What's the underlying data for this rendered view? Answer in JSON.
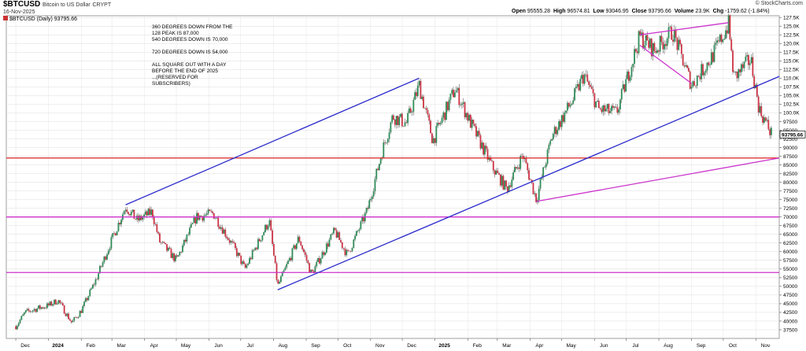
{
  "header": {
    "symbol": "$BTCUSD",
    "name": "Bitcoin to US Dollar",
    "exchange": "CRYPT",
    "date": "16-Nov-2025",
    "legend": "$BTCUSD (Daily) 93795.66",
    "source": "© StockCharts.com",
    "ohlc": {
      "open_label": "Open",
      "open": "95555.28",
      "high_label": "High",
      "high": "96574.81",
      "low_label": "Low",
      "low": "93046.95",
      "close_label": "Close",
      "close": "93795.66",
      "volume_label": "Volume",
      "volume": "23.9K",
      "chg_label": "Chg",
      "chg": "-1759.62 (-1.84%)"
    }
  },
  "annotations": {
    "line1": "360 DEGREES DOWN FROM THE",
    "line2": "128 PEAK IS 87,000",
    "line3": "540 DEGREES DOWN IS 70,000",
    "line4": "720 DEGREES DOWN IS 54,000",
    "line5": "ALL SQUARE OUT WITH A DAY",
    "line6": "BEFORE THE END OF 2025",
    "line7": "...(RESERVED FOR",
    "line8": "SUBSCRIBERS)"
  },
  "chart_data": {
    "type": "candlestick",
    "title": "Bitcoin to US Dollar",
    "x_ticks": [
      "Dec",
      "2024",
      "Feb",
      "Mar",
      "Apr",
      "May",
      "Jun",
      "Jul",
      "Aug",
      "Sep",
      "Oct",
      "Nov",
      "Dec",
      "2025",
      "Feb",
      "Mar",
      "Apr",
      "May",
      "Jun",
      "Jul",
      "Aug",
      "Sep",
      "Oct",
      "Nov"
    ],
    "y_ticks": [
      "127.5K",
      "125.0K",
      "122.5K",
      "120.0K",
      "117.5K",
      "115.0K",
      "112.5K",
      "110.0K",
      "107.5K",
      "105.0K",
      "102.5K",
      "100.0K",
      "97500",
      "95000",
      "92500",
      "90000",
      "87500",
      "85000",
      "82500",
      "80000",
      "77500",
      "75000",
      "72500",
      "70000",
      "67500",
      "65000",
      "62500",
      "60000",
      "57500",
      "55000",
      "52500",
      "50000",
      "47500",
      "45000",
      "42500",
      "40000",
      "37500"
    ],
    "y_range": [
      35000,
      128000
    ],
    "last_price_label": "93795.66",
    "price_path": [
      [
        "2023-12-01",
        38500
      ],
      [
        "2023-12-10",
        42500
      ],
      [
        "2023-12-20",
        43500
      ],
      [
        "2024-01-01",
        44500
      ],
      [
        "2024-01-10",
        46000
      ],
      [
        "2024-01-23",
        39500
      ],
      [
        "2024-02-01",
        43000
      ],
      [
        "2024-02-15",
        52000
      ],
      [
        "2024-02-28",
        62000
      ],
      [
        "2024-03-14",
        73000
      ],
      [
        "2024-03-25",
        69000
      ],
      [
        "2024-04-08",
        71500
      ],
      [
        "2024-04-15",
        63000
      ],
      [
        "2024-05-01",
        57500
      ],
      [
        "2024-05-20",
        70000
      ],
      [
        "2024-06-05",
        71000
      ],
      [
        "2024-06-25",
        61000
      ],
      [
        "2024-07-05",
        55000
      ],
      [
        "2024-07-28",
        69000
      ],
      [
        "2024-08-05",
        50000
      ],
      [
        "2024-08-25",
        64000
      ],
      [
        "2024-09-06",
        53500
      ],
      [
        "2024-09-28",
        66000
      ],
      [
        "2024-10-10",
        59000
      ],
      [
        "2024-10-29",
        72000
      ],
      [
        "2024-11-12",
        89000
      ],
      [
        "2024-11-22",
        99000
      ],
      [
        "2024-12-05",
        97000
      ],
      [
        "2024-12-17",
        108000
      ],
      [
        "2024-12-30",
        92000
      ],
      [
        "2025-01-20",
        107000
      ],
      [
        "2025-02-03",
        97500
      ],
      [
        "2025-02-25",
        84000
      ],
      [
        "2025-03-10",
        78000
      ],
      [
        "2025-03-25",
        88000
      ],
      [
        "2025-04-07",
        75000
      ],
      [
        "2025-04-22",
        93500
      ],
      [
        "2025-05-12",
        104000
      ],
      [
        "2025-05-22",
        111000
      ],
      [
        "2025-06-05",
        101000
      ],
      [
        "2025-06-22",
        100000
      ],
      [
        "2025-07-14",
        122000
      ],
      [
        "2025-07-28",
        118000
      ],
      [
        "2025-08-14",
        123500
      ],
      [
        "2025-09-01",
        108000
      ],
      [
        "2025-09-20",
        116000
      ],
      [
        "2025-10-06",
        125500
      ],
      [
        "2025-10-11",
        110000
      ],
      [
        "2025-10-27",
        115500
      ],
      [
        "2025-11-04",
        101000
      ],
      [
        "2025-11-16",
        93795.66
      ]
    ],
    "lines": [
      {
        "color": "#2a2acc",
        "from": [
          "2024-03-14",
          73500
        ],
        "to": [
          "2024-12-17",
          110000
        ]
      },
      {
        "color": "#2a2acc",
        "from": [
          "2024-08-05",
          49000
        ],
        "to": [
          "2025-11-23",
          110500
        ]
      },
      {
        "color": "#cc33cc",
        "from": [
          "2025-04-07",
          74500
        ],
        "to": [
          "2025-11-23",
          87000
        ]
      },
      {
        "color": "#cc33cc",
        "from": [
          "2025-07-14",
          119500
        ],
        "to": [
          "2025-09-01",
          108500
        ]
      },
      {
        "color": "#cc33cc",
        "from": [
          "2025-07-14",
          122500
        ],
        "to": [
          "2025-10-06",
          126000
        ]
      }
    ],
    "hlines": [
      {
        "color": "#dd2222",
        "value": 87000
      },
      {
        "color": "#cc33cc",
        "value": 70000
      },
      {
        "color": "#cc33cc",
        "value": 54000
      }
    ]
  }
}
